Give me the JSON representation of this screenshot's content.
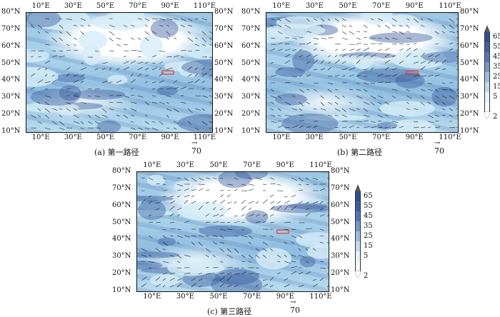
{
  "chart_data": [
    {
      "type": "heatmap",
      "caption": "(a) 第一路径",
      "x_ticks": [
        "10°E",
        "30°E",
        "50°E",
        "70°E",
        "90°E",
        "110°E"
      ],
      "y_ticks": [
        "80°N",
        "70°N",
        "60°N",
        "50°N",
        "40°N",
        "30°N",
        "20°N",
        "10°N"
      ],
      "reference_vector": "70",
      "xlim": [
        0,
        115
      ],
      "ylim": [
        10,
        80
      ]
    },
    {
      "type": "heatmap",
      "caption": "(b) 第二路径",
      "x_ticks": [
        "10°E",
        "30°E",
        "50°E",
        "70°E",
        "90°E",
        "110°E"
      ],
      "y_ticks": [
        "80°N",
        "70°N",
        "60°N",
        "50°N",
        "40°N",
        "30°N",
        "20°N",
        "10°N"
      ],
      "reference_vector": "70",
      "colorbar": [
        "65",
        "55",
        "45",
        "35",
        "25",
        "15",
        "5",
        "2"
      ],
      "xlim": [
        0,
        115
      ],
      "ylim": [
        10,
        80
      ]
    },
    {
      "type": "heatmap",
      "caption": "(c) 第三路径",
      "x_ticks": [
        "10°E",
        "30°E",
        "50°E",
        "70°E",
        "90°E",
        "110°E"
      ],
      "y_ticks": [
        "80°N",
        "70°N",
        "60°N",
        "50°N",
        "40°N",
        "30°N",
        "20°N",
        "10°N"
      ],
      "reference_vector": "70",
      "colorbar": [
        "65",
        "55",
        "45",
        "35",
        "25",
        "15",
        "5",
        "2"
      ],
      "xlim": [
        0,
        115
      ],
      "ylim": [
        10,
        80
      ]
    }
  ],
  "colors": {
    "shade_light": "#d6ecf7",
    "shade_mid": "#9dc7e4",
    "shade_dark": "#3b5fa0",
    "box": "#e23b3b",
    "arrow": "#1a1a1a"
  }
}
